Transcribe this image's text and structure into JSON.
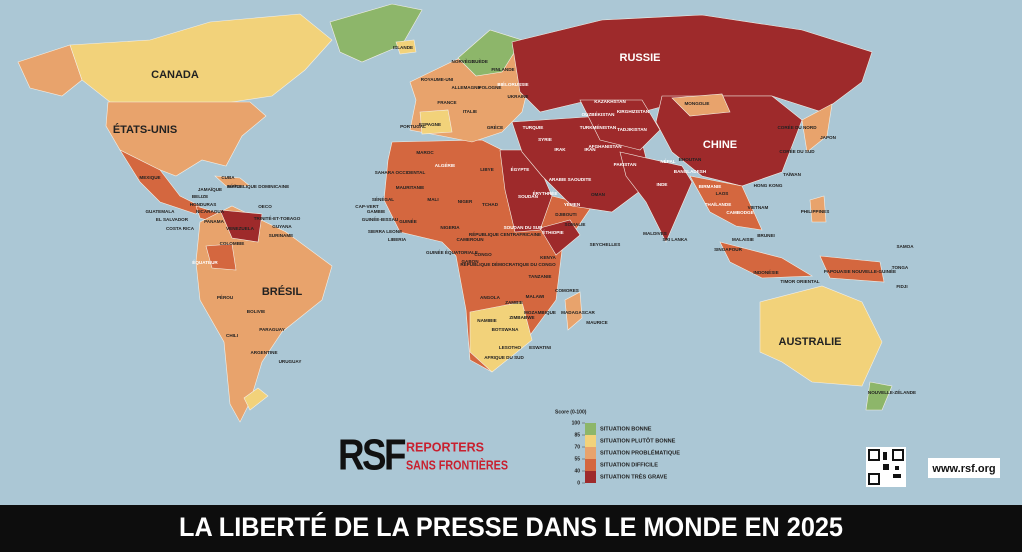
{
  "title": "LA LIBERTÉ DE LA PRESSE DANS LE MONDE EN 2025",
  "legend": {
    "title": "Score (0-100)",
    "ticks": [
      100,
      85,
      70,
      55,
      40,
      0
    ],
    "items": [
      {
        "label": "SITUATION BONNE",
        "color": "#8db66a"
      },
      {
        "label": "SITUATION PLUTÔT BONNE",
        "color": "#f2d27a"
      },
      {
        "label": "SITUATION PROBLÉMATIQUE",
        "color": "#e8a36c"
      },
      {
        "label": "SITUATION DIFFICILE",
        "color": "#d4673f"
      },
      {
        "label": "SITUATION TRÈS GRAVE",
        "color": "#9e2a2b"
      }
    ]
  },
  "logo": {
    "mark": "RSF",
    "name": [
      "REPORTERS",
      "SANS FRONTIÈRES"
    ]
  },
  "website": "www.rsf.org",
  "major_labels": [
    "CANADA",
    "ÉTATS-UNIS",
    "RUSSIE",
    "CHINE",
    "BRÉSIL",
    "AUSTRALIE"
  ],
  "minor_labels": [
    "ISLANDE",
    "NORVÈGE",
    "SUÈDE",
    "FINLANDE",
    "ROYAUME-UNI",
    "ALLEMAGNE",
    "POLOGNE",
    "BIÉLORUSSIE",
    "UKRAINE",
    "FRANCE",
    "ITALIE",
    "ESPAGNE",
    "PORTUGAL",
    "GRÈCE",
    "TURQUIE",
    "SYRIE",
    "IRAK",
    "IRAN",
    "KAZAKHSTAN",
    "OUZBÉKISTAN",
    "TURKMÉNISTAN",
    "KIRGHIZISTAN",
    "TADJIKISTAN",
    "AFGHANISTAN",
    "PAKISTAN",
    "MONGOLIE",
    "INDE",
    "NÉPAL",
    "BHOUTAN",
    "BANGLADESH",
    "BIRMANIE",
    "THAÏLANDE",
    "LAOS",
    "VIETNAM",
    "CAMBODGE",
    "MALAISIE",
    "SINGAPOUR",
    "INDONÉSIE",
    "PHILIPPINES",
    "TAÏWAN",
    "HONG KONG",
    "CORÉE DU NORD",
    "CORÉE DU SUD",
    "JAPON",
    "MALDIVES",
    "SRI LANKA",
    "SEYCHELLES",
    "MAURICE",
    "COMORES",
    "MADAGASCAR",
    "BRUNEI",
    "TIMOR ORIENTAL",
    "PAPOUASIE NOUVELLE-GUINÉE",
    "SAMOA",
    "TONGA",
    "FIDJI",
    "NOUVELLE-ZÉLANDE",
    "MAROC",
    "ALGÉRIE",
    "LIBYE",
    "ÉGYPTE",
    "SOUDAN",
    "TCHAD",
    "NIGER",
    "MALI",
    "MAURITANIE",
    "SAHARA OCCIDENTAL",
    "SÉNÉGAL",
    "CAP-VERT",
    "GAMBIE",
    "GUINÉE-BISSAU",
    "SIERRA LEONE",
    "LIBERIA",
    "GUINÉE",
    "ÉRYTHRÉE",
    "YÉMEN",
    "ARABIE SAOUDITE",
    "OMAN",
    "DJIBOUTI",
    "ÉTHIOPIE",
    "SOMALIE",
    "SOUDAN DU SUD",
    "KENYA",
    "RÉPUBLIQUE CENTRAFRICAINE",
    "CAMEROUN",
    "GABON",
    "CONGO",
    "RÉPUBLIQUE DÉMOCRATIQUE DU CONGO",
    "GUINÉE ÉQUATORIALE",
    "TANZANIE",
    "ANGOLA",
    "ZAMBIE",
    "MALAWI",
    "MOZAMBIQUE",
    "ZIMBABWE",
    "NAMIBIE",
    "BOTSWANA",
    "AFRIQUE DU SUD",
    "LESOTHO",
    "ESWATINI",
    "NIGERIA",
    "MEXIQUE",
    "CUBA",
    "HAÏTI",
    "RÉPUBLIQUE DOMINICAINE",
    "JAMAÏQUE",
    "BELIZE",
    "HONDURAS",
    "NICARAGUA",
    "GUATEMALA",
    "EL SALVADOR",
    "COSTA RICA",
    "PANAMA",
    "OECO",
    "TRINITÉ-ET-TOBAGO",
    "GUYANA",
    "SURINAME",
    "VENEZUELA",
    "COLOMBIE",
    "ÉQUATEUR",
    "PÉROU",
    "BOLIVIE",
    "PARAGUAY",
    "CHILI",
    "ARGENTINE",
    "URUGUAY"
  ]
}
